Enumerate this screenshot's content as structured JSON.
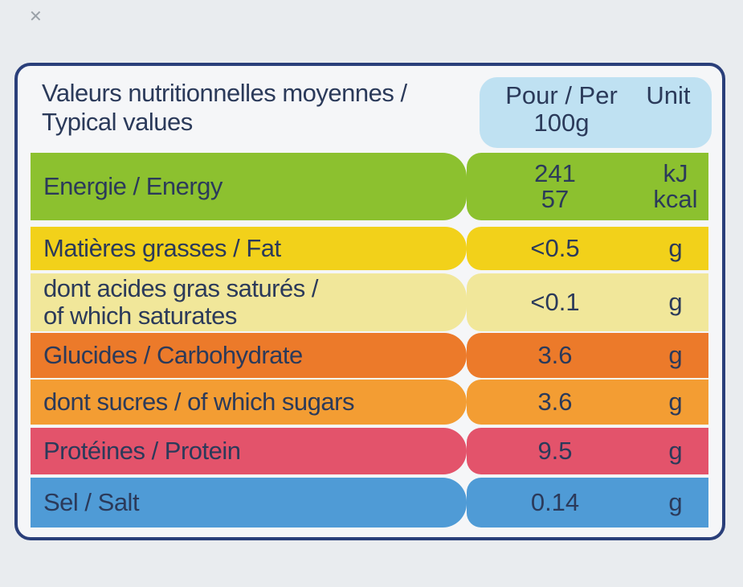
{
  "header": {
    "title_line1": "Valeurs nutritionnelles moyennes /",
    "title_line2": "Typical values",
    "per_line1": "Pour / Per",
    "per_line2": "100g",
    "unit": "Unit"
  },
  "rows": [
    {
      "name_line1": "Energie / Energy",
      "name_line2": "",
      "value_line1": "241",
      "value_line2": "57",
      "unit_line1": "kJ",
      "unit_line2": "kcal",
      "color": "#8cc12f"
    },
    {
      "name_line1": "Matières grasses / Fat",
      "name_line2": "",
      "value_line1": "<0.5",
      "value_line2": "",
      "unit_line1": "g",
      "unit_line2": "",
      "color": "#f2d11a"
    },
    {
      "name_line1": "dont acides gras saturés /",
      "name_line2": "of which saturates",
      "value_line1": "<0.1",
      "value_line2": "",
      "unit_line1": "g",
      "unit_line2": "",
      "color": "#f1e79a"
    },
    {
      "name_line1": "Glucides / Carbohydrate",
      "name_line2": "",
      "value_line1": "3.6",
      "value_line2": "",
      "unit_line1": "g",
      "unit_line2": "",
      "color": "#ec7a2a"
    },
    {
      "name_line1": "dont sucres / of which sugars",
      "name_line2": "",
      "value_line1": "3.6",
      "value_line2": "",
      "unit_line1": "g",
      "unit_line2": "",
      "color": "#f39d33"
    },
    {
      "name_line1": "Protéines / Protein",
      "name_line2": "",
      "value_line1": "9.5",
      "value_line2": "",
      "unit_line1": "g",
      "unit_line2": "",
      "color": "#e3536b"
    },
    {
      "name_line1": "Sel / Salt",
      "name_line2": "",
      "value_line1": "0.14",
      "value_line2": "",
      "unit_line1": "g",
      "unit_line2": "",
      "color": "#4f9bd6"
    }
  ]
}
